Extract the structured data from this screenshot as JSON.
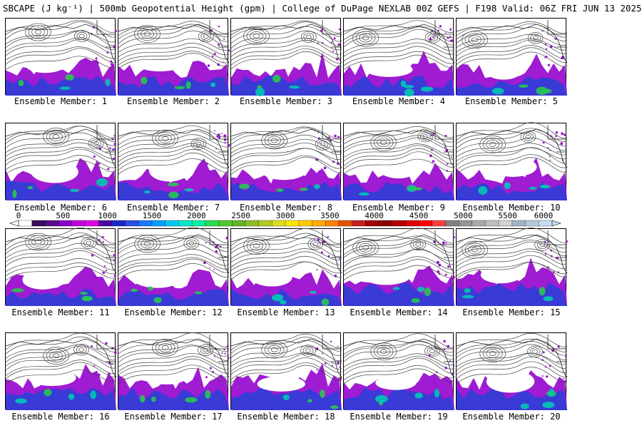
{
  "title": "SBCAPE (J kg⁻¹) | 500mb Geopotential Height (gpm) | College of DuPage NEXLAB 00Z GEFS | F198 Valid: 06Z FRI JUN 13 2025",
  "members": [
    {
      "label": "Ensemble Member: 1"
    },
    {
      "label": "Ensemble Member: 2"
    },
    {
      "label": "Ensemble Member: 3"
    },
    {
      "label": "Ensemble Member: 4"
    },
    {
      "label": "Ensemble Member: 5"
    },
    {
      "label": "Ensemble Member: 6"
    },
    {
      "label": "Ensemble Member: 7"
    },
    {
      "label": "Ensemble Member: 8"
    },
    {
      "label": "Ensemble Member: 9"
    },
    {
      "label": "Ensemble Member: 10"
    },
    {
      "label": "Ensemble Member: 11"
    },
    {
      "label": "Ensemble Member: 12"
    },
    {
      "label": "Ensemble Member: 13"
    },
    {
      "label": "Ensemble Member: 14"
    },
    {
      "label": "Ensemble Member: 15"
    },
    {
      "label": "Ensemble Member: 16"
    },
    {
      "label": "Ensemble Member: 17"
    },
    {
      "label": "Ensemble Member: 18"
    },
    {
      "label": "Ensemble Member: 19"
    },
    {
      "label": "Ensemble Member: 20"
    }
  ],
  "colorbar": {
    "ticks": [
      "0",
      "500",
      "1000",
      "1500",
      "2000",
      "2500",
      "3000",
      "3500",
      "4000",
      "4500",
      "5000",
      "5500",
      "6000"
    ],
    "colors": [
      "#ffffff",
      "#3a0a5a",
      "#5a0a8c",
      "#8a00c8",
      "#c000e0",
      "#e000e0",
      "#4b00a0",
      "#1e28c8",
      "#2850e6",
      "#1e78ff",
      "#00a0ff",
      "#00c8f0",
      "#00e6c8",
      "#00f0a0",
      "#28dc50",
      "#50c832",
      "#64b428",
      "#8cbe28",
      "#b4c81e",
      "#dcdc1e",
      "#ffe600",
      "#ffc800",
      "#ffaa00",
      "#ff8200",
      "#e65000",
      "#c81e1e",
      "#a00000",
      "#8c0000",
      "#b40000",
      "#dc0000",
      "#ff0000",
      "#ff3c3c",
      "#808080",
      "#969696",
      "#aaaaaa",
      "#bebebe",
      "#d2d2d2",
      "#a0b4c8",
      "#b4c8dc",
      "#c8dcf0"
    ]
  }
}
